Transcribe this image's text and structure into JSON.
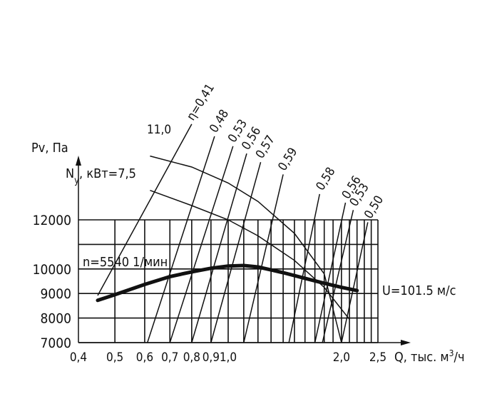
{
  "chart_data": {
    "type": "line",
    "title": "",
    "xlabel": "Q, тыс. м3/ч",
    "x_axis_label": {
      "main": "Q, тыс. м",
      "superscript": "3",
      "suffix": "/ч"
    },
    "ylabel": "Pv, Па",
    "x_scale": "log",
    "xlim": [
      0.4,
      2.5
    ],
    "ylim": [
      7000,
      12000
    ],
    "x_ticks": [
      {
        "value": 0.4,
        "label": "0,4"
      },
      {
        "value": 0.5,
        "label": "0,5"
      },
      {
        "value": 0.6,
        "label": "0,6"
      },
      {
        "value": 0.7,
        "label": "0,7"
      },
      {
        "value": 0.8,
        "label": "0,8"
      },
      {
        "value": 0.9,
        "label": "0,9"
      },
      {
        "value": 1.0,
        "label": "1,0"
      },
      {
        "value": 2.0,
        "label": "2,0"
      },
      {
        "value": 2.5,
        "label": "2,5"
      }
    ],
    "y_ticks": [
      {
        "value": 7000,
        "label": "7000"
      },
      {
        "value": 8000,
        "label": "8000"
      },
      {
        "value": 9000,
        "label": "9000"
      },
      {
        "value": 10000,
        "label": "10000"
      },
      {
        "value": 12000,
        "label": "12000"
      }
    ],
    "series": [
      {
        "name": "n=5540 1/мин",
        "x": [
          0.45,
          0.5,
          0.6,
          0.7,
          0.8,
          0.9,
          1.0,
          1.1,
          1.2,
          1.4,
          1.6,
          1.8,
          2.0,
          2.2
        ],
        "y": [
          8720,
          8950,
          9370,
          9690,
          9880,
          10030,
          10120,
          10140,
          10080,
          9850,
          9620,
          9420,
          9250,
          9120
        ]
      }
    ],
    "power_label": "N",
    "power_label_subscript": "y",
    "power_label_suffix": ", кВт=7,5",
    "power_curve_labels": [
      "11,0"
    ],
    "power_curves": [
      {
        "label": "7,5",
        "x": [
          0.62,
          0.8,
          1.0,
          1.2,
          1.5,
          1.8,
          2.1
        ],
        "y": [
          13200,
          12580,
          12000,
          11350,
          10350,
          9250,
          7950
        ]
      },
      {
        "label": "11,0",
        "x": [
          0.62,
          0.8,
          1.0,
          1.2,
          1.5,
          1.8,
          2.0
        ],
        "y": [
          14600,
          14150,
          13500,
          12750,
          11450,
          9800,
          7000
        ]
      }
    ],
    "efficiency_lines": [
      {
        "label": "η=0,41",
        "x0": 0.45,
        "x1": 0.8,
        "y_top": 15900
      },
      {
        "label": "0,48",
        "x0": 0.61,
        "x1": 0.92,
        "y_top": 15400
      },
      {
        "label": "0,53",
        "x0": 0.7,
        "x1": 1.03,
        "y_top": 15000
      },
      {
        "label": "0,56",
        "x0": 0.8,
        "x1": 1.12,
        "y_top": 14700
      },
      {
        "label": "0,57",
        "x0": 0.9,
        "x1": 1.22,
        "y_top": 14350
      },
      {
        "label": "0,59",
        "x0": 1.1,
        "x1": 1.4,
        "y_top": 13850
      },
      {
        "label": "0,58",
        "x0": 1.45,
        "x1": 1.75,
        "y_top": 13050
      },
      {
        "label": "0,56",
        "x0": 1.7,
        "x1": 2.05,
        "y_top": 12700
      },
      {
        "label": "0,53",
        "x0": 1.78,
        "x1": 2.15,
        "y_top": 12400
      },
      {
        "label": "0,50",
        "x0": 2.0,
        "x1": 2.35,
        "y_top": 11900
      }
    ],
    "annotations": [
      "n=5540 1/мин",
      "U=101.5 м/с"
    ],
    "grid": true,
    "legend": "none"
  }
}
